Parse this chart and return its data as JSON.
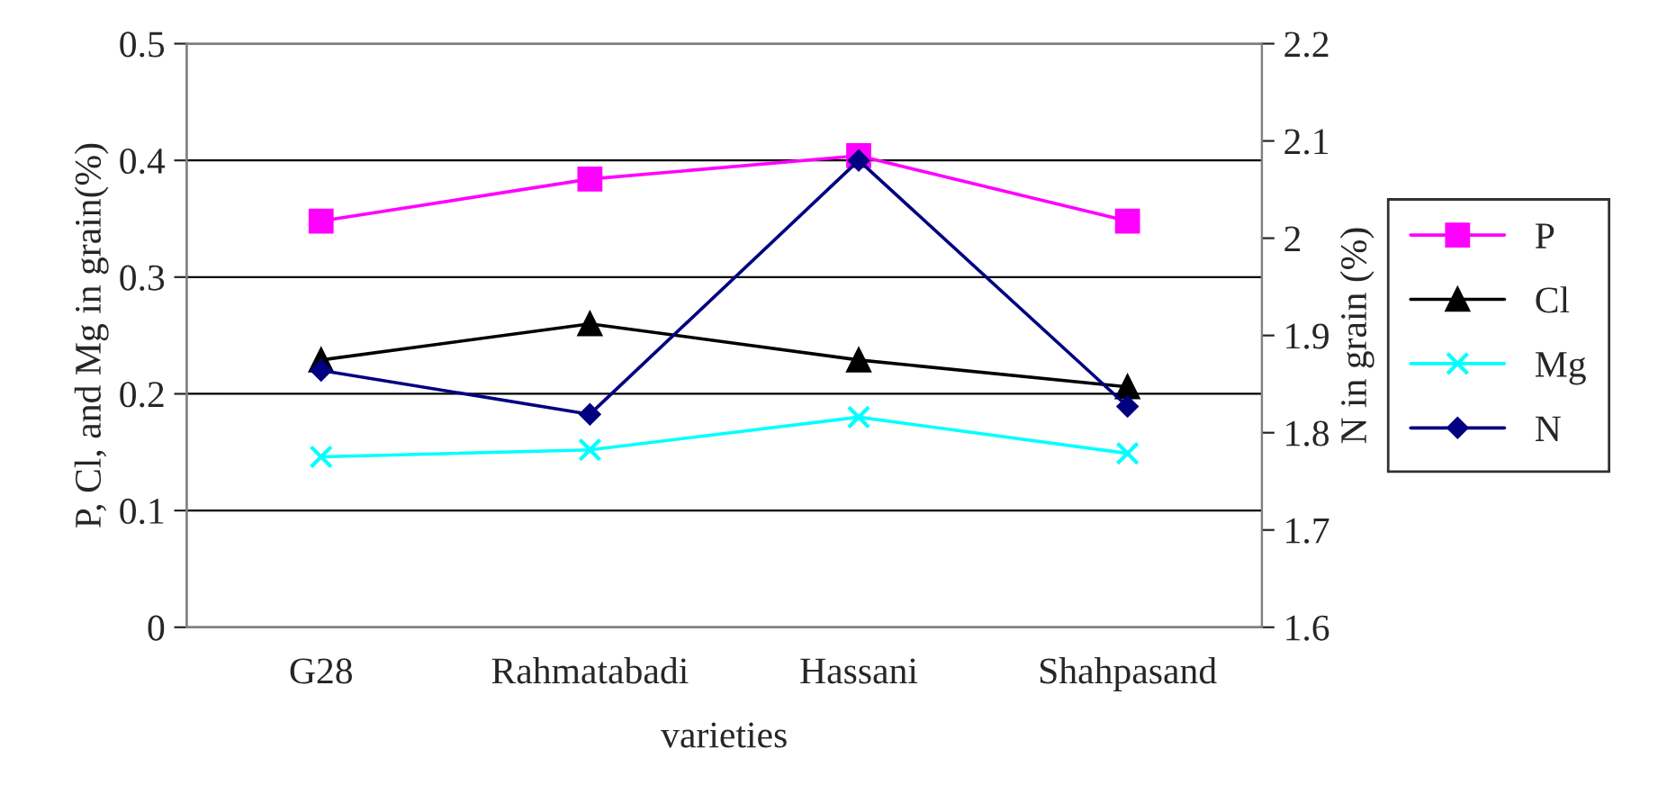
{
  "chart_data": {
    "type": "line",
    "xlabel": "varieties",
    "ylabel": "P, Cl, and Mg in grain(%)",
    "y2label": "N in grain (%)",
    "categories": [
      "G28",
      "Rahmatabadi",
      "Hassani",
      "Shahpasand"
    ],
    "series": [
      {
        "name": "P",
        "color": "#ff00ff",
        "marker": "square",
        "values": [
          0.348,
          0.384,
          0.404,
          0.348
        ]
      },
      {
        "name": "Cl",
        "color": "#000000",
        "marker": "triangle",
        "values": [
          0.229,
          0.26,
          0.229,
          0.206
        ]
      },
      {
        "name": "Mg",
        "color": "#00ffff",
        "marker": "cross",
        "values": [
          0.146,
          0.152,
          0.18,
          0.149
        ]
      },
      {
        "name": "N",
        "color": "#000080",
        "marker": "diamond",
        "axis": "y2",
        "values": [
          1.864,
          1.819,
          2.08,
          1.827
        ]
      }
    ],
    "ylim": [
      0,
      0.5
    ],
    "yticks": [
      0,
      0.1,
      0.2,
      0.3,
      0.4,
      0.5
    ],
    "y2lim": [
      1.6,
      2.2
    ],
    "y2ticks": [
      1.6,
      1.7,
      1.8,
      1.9,
      2,
      2.1,
      2.2
    ],
    "grid": "y",
    "legend": "right",
    "line_style": "solid"
  }
}
